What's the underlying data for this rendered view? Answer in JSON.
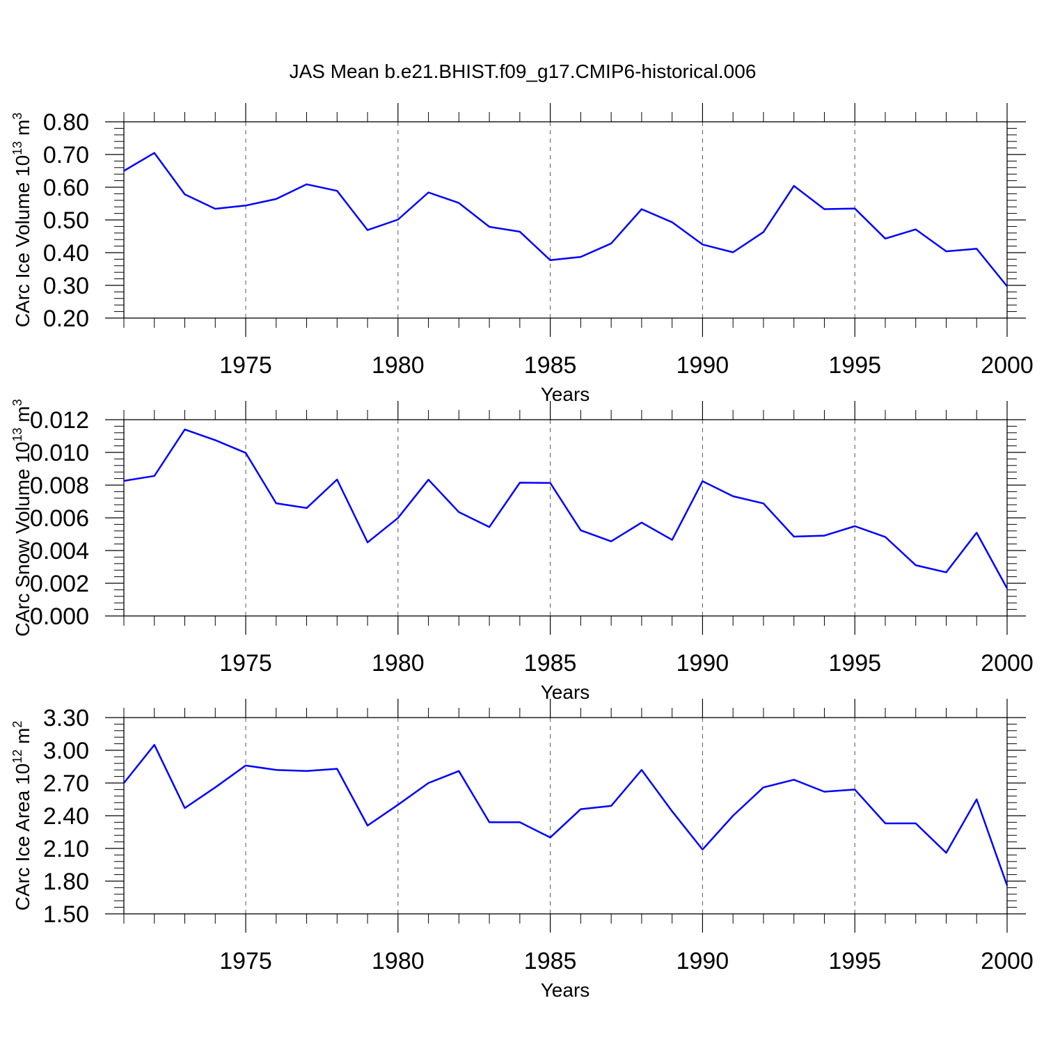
{
  "title": "JAS Mean b.e21.BHIST.f09_g17.CMIP6-historical.006",
  "colors": {
    "line": "#0000ff",
    "axis": "#000000",
    "grid": "#555555"
  },
  "chart_data": [
    {
      "type": "line",
      "xlabel": "Years",
      "ylabel": {
        "main": "CArc Ice Volume 10",
        "sup": "13",
        "unit": " m",
        "unit_sup": "3"
      },
      "xlim": [
        1971,
        2000
      ],
      "ylim": [
        0.2,
        0.8
      ],
      "x_ticks": [
        "1975",
        "1980",
        "1985",
        "1990",
        "1995",
        "2000"
      ],
      "y_ticks": [
        "0.20",
        "0.30",
        "0.40",
        "0.50",
        "0.60",
        "0.70",
        "0.80"
      ],
      "grid": "vertical dashed at major x ticks",
      "x": [
        1971,
        1972,
        1973,
        1974,
        1975,
        1976,
        1977,
        1978,
        1979,
        1980,
        1981,
        1982,
        1983,
        1984,
        1985,
        1986,
        1987,
        1988,
        1989,
        1990,
        1991,
        1992,
        1993,
        1994,
        1995,
        1996,
        1997,
        1998,
        1999,
        2000
      ],
      "values": [
        0.65,
        0.705,
        0.578,
        0.534,
        0.544,
        0.564,
        0.609,
        0.589,
        0.469,
        0.501,
        0.584,
        0.552,
        0.479,
        0.464,
        0.377,
        0.387,
        0.428,
        0.533,
        0.493,
        0.425,
        0.401,
        0.463,
        0.604,
        0.533,
        0.535,
        0.443,
        0.471,
        0.404,
        0.412,
        0.297
      ]
    },
    {
      "type": "line",
      "xlabel": "Years",
      "ylabel": {
        "main": "CArc Snow Volume 10",
        "sup": "13",
        "unit": " m",
        "unit_sup": "3"
      },
      "xlim": [
        1971,
        2000
      ],
      "ylim": [
        0,
        0.012
      ],
      "x_ticks": [
        "1975",
        "1980",
        "1985",
        "1990",
        "1995",
        "2000"
      ],
      "y_ticks": [
        "0.000",
        "0.002",
        "0.004",
        "0.006",
        "0.008",
        "0.010",
        "0.012"
      ],
      "grid": "vertical dashed at major x ticks",
      "x": [
        1971,
        1972,
        1973,
        1974,
        1975,
        1976,
        1977,
        1978,
        1979,
        1980,
        1981,
        1982,
        1983,
        1984,
        1985,
        1986,
        1987,
        1988,
        1989,
        1990,
        1991,
        1992,
        1993,
        1994,
        1995,
        1996,
        1997,
        1998,
        1999,
        2000
      ],
      "values": [
        0.00826,
        0.00856,
        0.0114,
        0.01075,
        0.00997,
        0.00689,
        0.0066,
        0.00834,
        0.0045,
        0.00599,
        0.00833,
        0.00635,
        0.00544,
        0.00815,
        0.00813,
        0.00524,
        0.00456,
        0.00571,
        0.00465,
        0.00824,
        0.00732,
        0.00688,
        0.00485,
        0.00491,
        0.00549,
        0.00483,
        0.0031,
        0.00267,
        0.00509,
        0.00168
      ]
    },
    {
      "type": "line",
      "xlabel": "Years",
      "ylabel": {
        "main": "CArc Ice Area 10",
        "sup": "12",
        "unit": " m",
        "unit_sup": "2"
      },
      "xlim": [
        1971,
        2000
      ],
      "ylim": [
        1.5,
        3.3
      ],
      "x_ticks": [
        "1975",
        "1980",
        "1985",
        "1990",
        "1995",
        "2000"
      ],
      "y_ticks": [
        "1.50",
        "1.80",
        "2.10",
        "2.40",
        "2.70",
        "3.00",
        "3.30"
      ],
      "grid": "vertical dashed at major x ticks",
      "x": [
        1971,
        1972,
        1973,
        1974,
        1975,
        1976,
        1977,
        1978,
        1979,
        1980,
        1981,
        1982,
        1983,
        1984,
        1985,
        1986,
        1987,
        1988,
        1989,
        1990,
        1991,
        1992,
        1993,
        1994,
        1995,
        1996,
        1997,
        1998,
        1999,
        2000
      ],
      "values": [
        2.7,
        3.05,
        2.47,
        2.66,
        2.86,
        2.82,
        2.81,
        2.83,
        2.31,
        2.5,
        2.7,
        2.81,
        2.34,
        2.34,
        2.2,
        2.46,
        2.49,
        2.82,
        2.44,
        2.09,
        2.4,
        2.66,
        2.73,
        2.62,
        2.64,
        2.33,
        2.33,
        2.06,
        2.55,
        1.76
      ]
    }
  ]
}
